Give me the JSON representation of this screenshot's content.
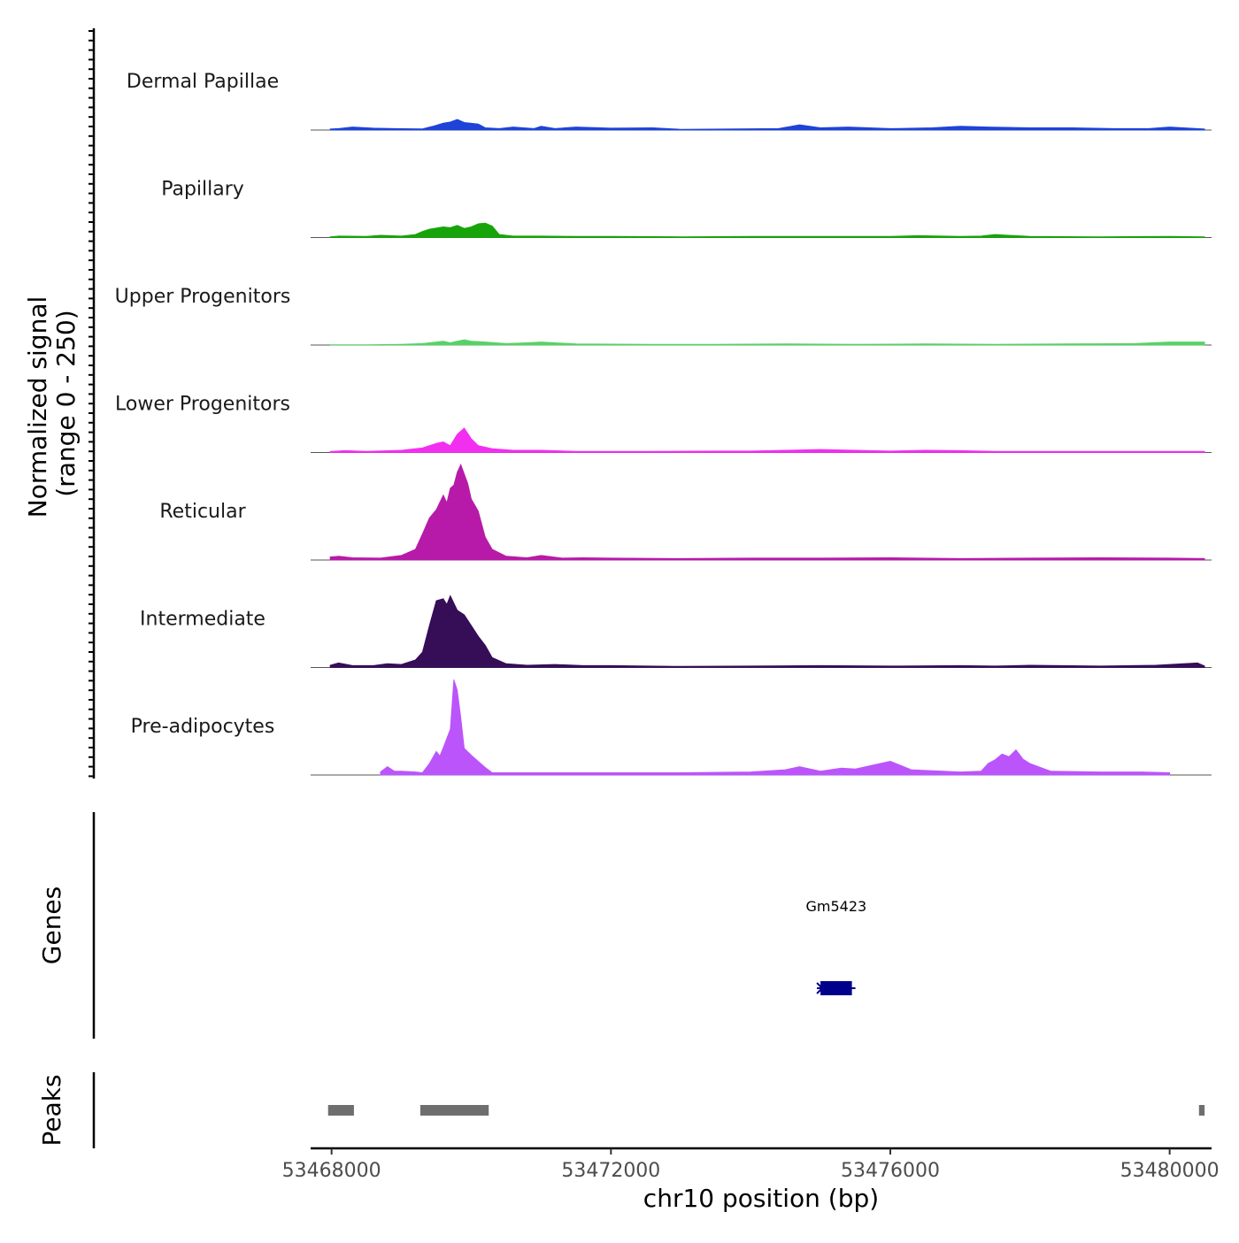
{
  "chart_data": {
    "type": "area",
    "title": "",
    "ylabel_lines": [
      "Normalized signal",
      "(range 0 - 250)"
    ],
    "ylim": [
      0,
      250
    ],
    "xlabel": "chr10 position (bp)",
    "xlim": [
      53467700,
      53480600
    ],
    "xticks": [
      53468000,
      53472000,
      53476000,
      53480000
    ],
    "xtick_labels": [
      "53468000",
      "53472000",
      "53476000",
      "53480000"
    ],
    "tracks": [
      {
        "name": "Dermal Papillae",
        "color": "#1f43d6",
        "x": [
          53467980,
          53468100,
          53468300,
          53468600,
          53468900,
          53469300,
          53469450,
          53469600,
          53469700,
          53469800,
          53469900,
          53470100,
          53470200,
          53470400,
          53470600,
          53470900,
          53471000,
          53471200,
          53471500,
          53472000,
          53472600,
          53473000,
          53474400,
          53474700,
          53475000,
          53475400,
          53476000,
          53476600,
          53477000,
          53477400,
          53478000,
          53478600,
          53479200,
          53479700,
          53480000,
          53480500
        ],
        "values": [
          3,
          4,
          8,
          5,
          4,
          3,
          10,
          18,
          21,
          28,
          20,
          16,
          6,
          4,
          8,
          4,
          10,
          4,
          8,
          5,
          6,
          2,
          4,
          14,
          6,
          8,
          4,
          6,
          10,
          8,
          6,
          6,
          4,
          4,
          8,
          3
        ]
      },
      {
        "name": "Papillary",
        "color": "#17a40a",
        "x": [
          53467980,
          53468100,
          53468500,
          53468700,
          53469000,
          53469200,
          53469300,
          53469400,
          53469600,
          53469700,
          53469800,
          53469900,
          53470000,
          53470100,
          53470200,
          53470300,
          53470400,
          53470600,
          53471000,
          53471500,
          53472000,
          53473000,
          53474000,
          53475000,
          53476000,
          53476400,
          53477000,
          53477300,
          53477500,
          53478000,
          53479000,
          53480000,
          53480500
        ],
        "values": [
          2,
          4,
          3,
          6,
          4,
          8,
          16,
          22,
          28,
          26,
          32,
          24,
          28,
          36,
          38,
          30,
          8,
          4,
          4,
          3,
          3,
          2,
          3,
          3,
          3,
          5,
          3,
          4,
          8,
          3,
          2,
          3,
          2
        ]
      },
      {
        "name": "Upper Progenitors",
        "color": "#56d265",
        "x": [
          53467980,
          53468500,
          53469000,
          53469300,
          53469500,
          53469600,
          53469700,
          53469800,
          53469900,
          53470000,
          53470200,
          53470500,
          53470800,
          53471000,
          53471500,
          53472500,
          53473500,
          53474500,
          53475500,
          53476500,
          53477500,
          53478500,
          53479500,
          53480000,
          53480500
        ],
        "values": [
          1,
          1,
          2,
          4,
          8,
          10,
          6,
          10,
          14,
          10,
          8,
          4,
          6,
          8,
          3,
          2,
          2,
          3,
          2,
          3,
          2,
          3,
          4,
          8,
          8
        ]
      },
      {
        "name": "Lower Progenitors",
        "color": "#f22ff0",
        "x": [
          53467980,
          53468200,
          53468500,
          53469000,
          53469300,
          53469500,
          53469600,
          53469700,
          53469800,
          53469900,
          53470000,
          53470100,
          53470300,
          53470600,
          53471000,
          53471500,
          53472500,
          53473500,
          53474000,
          53474500,
          53475000,
          53475500,
          53476000,
          53476500,
          53477000,
          53477500,
          53478500,
          53479500,
          53480000,
          53480500
        ],
        "values": [
          3,
          5,
          3,
          6,
          12,
          24,
          28,
          18,
          48,
          64,
          36,
          18,
          10,
          6,
          6,
          3,
          3,
          4,
          4,
          6,
          8,
          6,
          4,
          6,
          5,
          3,
          3,
          3,
          3,
          3
        ],
        "peak_y": 64
      },
      {
        "name": "Reticular",
        "color": "#b71aa8",
        "x": [
          53467980,
          53468100,
          53468300,
          53468700,
          53469000,
          53469200,
          53469300,
          53469400,
          53469500,
          53469600,
          53469650,
          53469700,
          53469750,
          53469800,
          53469850,
          53469900,
          53469950,
          53470000,
          53470100,
          53470200,
          53470300,
          53470500,
          53470800,
          53471000,
          53471300,
          53471600,
          53472000,
          53473000,
          53474000,
          53475000,
          53476000,
          53477000,
          53478000,
          53479000,
          53480000,
          53480500
        ],
        "values": [
          8,
          10,
          6,
          5,
          12,
          28,
          68,
          110,
          132,
          170,
          150,
          188,
          196,
          230,
          250,
          225,
          200,
          160,
          128,
          60,
          28,
          10,
          6,
          12,
          5,
          6,
          5,
          4,
          5,
          5,
          6,
          4,
          5,
          6,
          5,
          4
        ],
        "peak_y": 250
      },
      {
        "name": "Intermediate",
        "color": "#360d57",
        "x": [
          53467980,
          53468100,
          53468300,
          53468600,
          53468800,
          53469000,
          53469200,
          53469300,
          53469400,
          53469500,
          53469600,
          53469650,
          53469700,
          53469800,
          53469900,
          53470000,
          53470100,
          53470200,
          53470300,
          53470500,
          53470800,
          53471200,
          53471600,
          53472000,
          53473000,
          53474000,
          53475000,
          53476000,
          53477000,
          53477500,
          53478000,
          53479000,
          53479800,
          53480200,
          53480400,
          53480500
        ],
        "values": [
          6,
          12,
          5,
          5,
          10,
          8,
          20,
          40,
          110,
          175,
          180,
          165,
          188,
          150,
          138,
          110,
          82,
          58,
          26,
          10,
          6,
          8,
          5,
          5,
          3,
          4,
          5,
          4,
          5,
          4,
          6,
          4,
          6,
          10,
          12,
          4
        ]
      },
      {
        "name": "Pre-adipocytes",
        "color": "#bb55fb",
        "x": [
          53468700,
          53468800,
          53468900,
          53469000,
          53469200,
          53469300,
          53469400,
          53469500,
          53469550,
          53469600,
          53469700,
          53469750,
          53469800,
          53469850,
          53469900,
          53470000,
          53470200,
          53470300,
          53471000,
          53471500,
          53472000,
          53472500,
          53473000,
          53474000,
          53474500,
          53474700,
          53475000,
          53475300,
          53475500,
          53476000,
          53476300,
          53477000,
          53477300,
          53477400,
          53477500,
          53477600,
          53477700,
          53477800,
          53477900,
          53478000,
          53478300,
          53479000,
          53479600,
          53480000
        ],
        "values": [
          8,
          22,
          10,
          10,
          8,
          6,
          30,
          62,
          50,
          72,
          120,
          250,
          222,
          150,
          70,
          52,
          20,
          6,
          6,
          6,
          6,
          6,
          6,
          8,
          14,
          22,
          10,
          18,
          16,
          36,
          14,
          8,
          10,
          30,
          40,
          55,
          48,
          66,
          42,
          30,
          10,
          8,
          8,
          6
        ]
      }
    ],
    "genes": [
      {
        "name": "Gm5423",
        "start": 53475000,
        "end": 53475450,
        "strand": "-",
        "color": "#00008b"
      }
    ],
    "peaks": [
      {
        "start": 53467950,
        "end": 53468320
      },
      {
        "start": 53469270,
        "end": 53470250
      },
      {
        "start": 53480420,
        "end": 53480500
      }
    ],
    "peak_color": "#6e6e6e",
    "genes_title": "Genes",
    "peaks_title": "Peaks"
  }
}
